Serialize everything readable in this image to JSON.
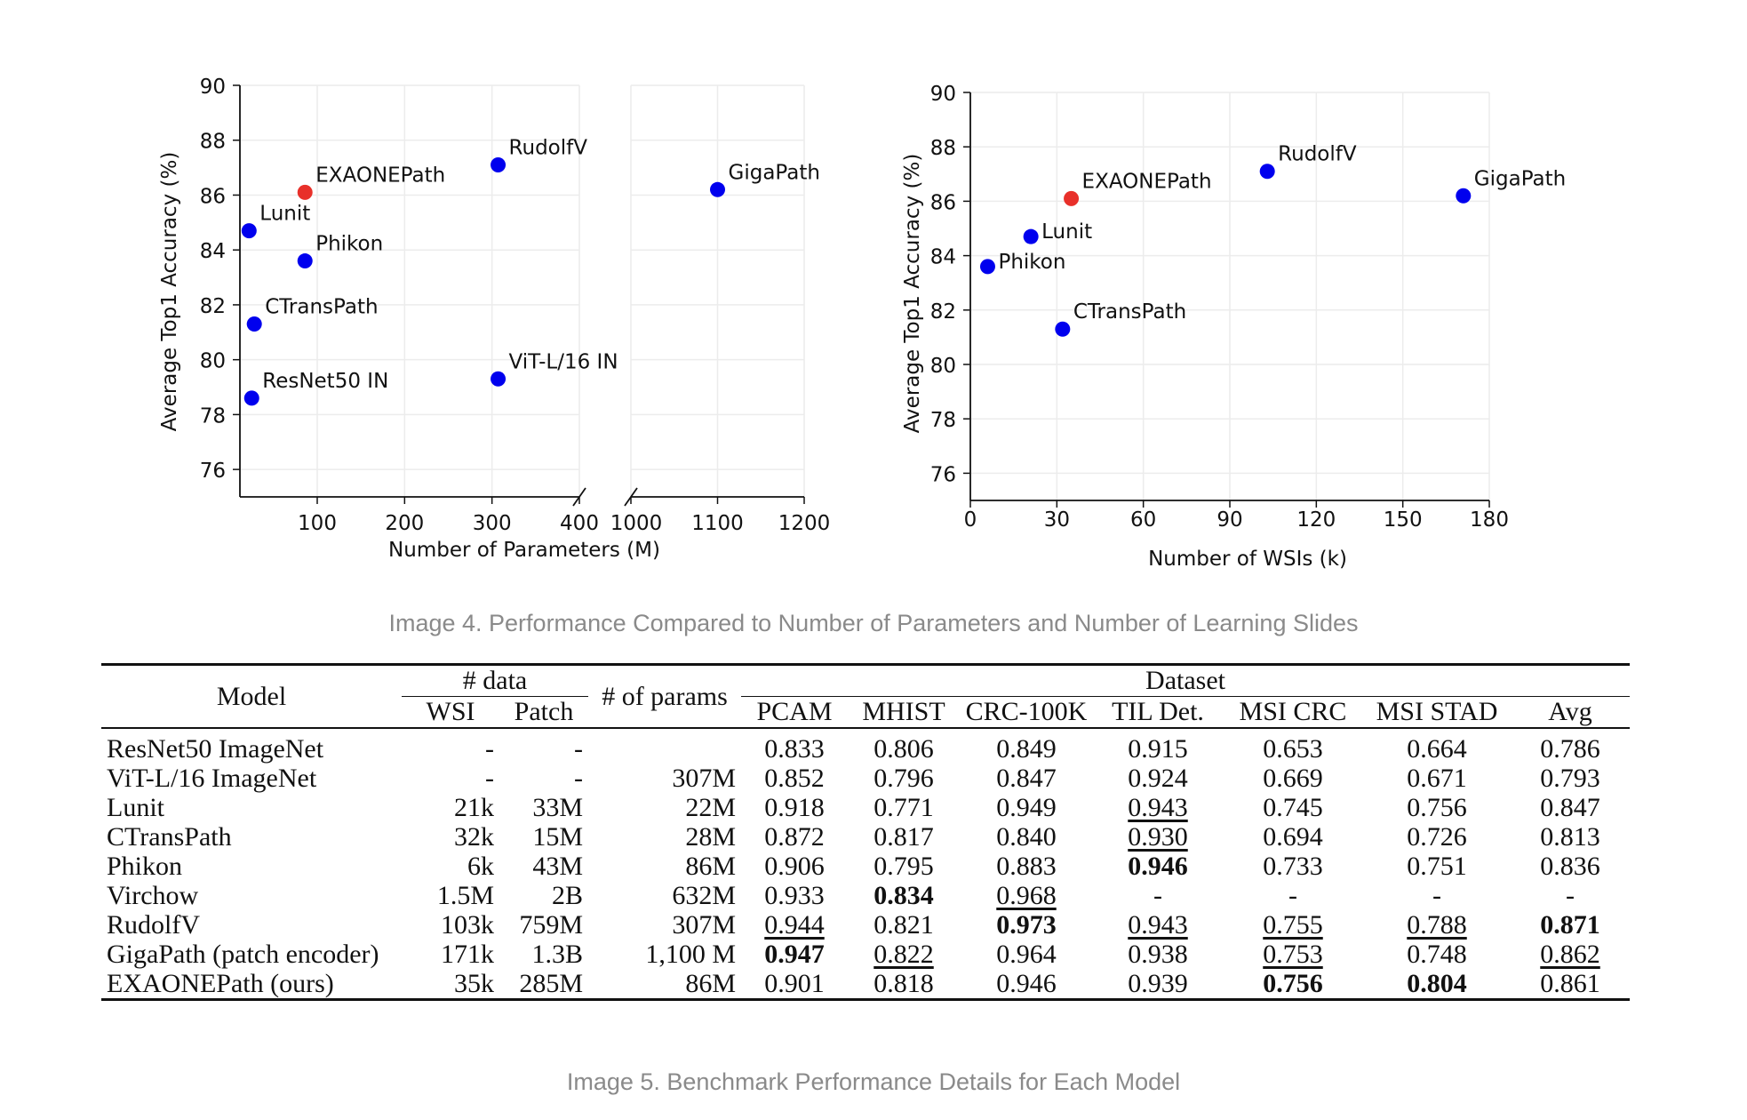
{
  "chart_data": [
    {
      "type": "scatter",
      "xlabel": "Number of Parameters (M)",
      "ylabel": "Average Top1 Accuracy (%)",
      "ylim": [
        75,
        90
      ],
      "yticks": [
        76,
        78,
        80,
        82,
        84,
        86,
        88,
        90
      ],
      "broken_x_axis": true,
      "x_segments": [
        {
          "range": [
            0,
            400
          ],
          "ticks": [
            "100",
            "200",
            "300",
            "400"
          ]
        },
        {
          "range": [
            1000,
            1200
          ],
          "ticks": [
            "1000",
            "1100",
            "1200"
          ]
        }
      ],
      "grid": true,
      "points": [
        {
          "label": "RudolfV",
          "x": 307,
          "y": 87.1,
          "color": "#0000ee"
        },
        {
          "label": "EXAONEPath",
          "x": 86,
          "y": 86.1,
          "color": "#e8302a"
        },
        {
          "label": "Lunit",
          "x": 22,
          "y": 84.7,
          "color": "#0000ee"
        },
        {
          "label": "Phikon",
          "x": 86,
          "y": 83.6,
          "color": "#0000ee"
        },
        {
          "label": "CTransPath",
          "x": 28,
          "y": 81.3,
          "color": "#0000ee"
        },
        {
          "label": "ResNet50 IN",
          "x": 25,
          "y": 78.6,
          "color": "#0000ee"
        },
        {
          "label": "ViT-L/16 IN",
          "x": 307,
          "y": 79.3,
          "color": "#0000ee"
        },
        {
          "label": "GigaPath",
          "x": 1100,
          "y": 86.2,
          "color": "#0000ee"
        }
      ]
    },
    {
      "type": "scatter",
      "xlabel": "Number of WSIs (k)",
      "ylabel": "Average Top1 Accuracy (%)",
      "xlim": [
        0,
        180
      ],
      "xticks": [
        0,
        30,
        60,
        90,
        120,
        150,
        180
      ],
      "ylim": [
        75,
        90
      ],
      "yticks": [
        76,
        78,
        80,
        82,
        84,
        86,
        88,
        90
      ],
      "grid": true,
      "points": [
        {
          "label": "RudolfV",
          "x": 103,
          "y": 87.1,
          "color": "#0000ee"
        },
        {
          "label": "EXAONEPath",
          "x": 35,
          "y": 86.1,
          "color": "#e8302a"
        },
        {
          "label": "Lunit",
          "x": 21,
          "y": 84.7,
          "color": "#0000ee"
        },
        {
          "label": "Phikon",
          "x": 6,
          "y": 83.6,
          "color": "#0000ee"
        },
        {
          "label": "CTransPath",
          "x": 32,
          "y": 81.3,
          "color": "#0000ee"
        },
        {
          "label": "GigaPath",
          "x": 171,
          "y": 86.2,
          "color": "#0000ee"
        }
      ]
    },
    {
      "type": "table",
      "headers": {
        "model": "Model",
        "data_group": "# data",
        "wsi": "WSI",
        "patch": "Patch",
        "params": "# of params",
        "dataset_group": "Dataset",
        "columns": [
          "PCAM",
          "MHIST",
          "CRC-100K",
          "TIL Det.",
          "MSI CRC",
          "MSI STAD",
          "Avg"
        ]
      },
      "rows": [
        {
          "model": "ResNet50 ImageNet",
          "wsi": "-",
          "patch": "-",
          "params": "",
          "scores": [
            "0.833",
            "0.806",
            "0.849",
            "0.915",
            "0.653",
            "0.664",
            "0.786"
          ],
          "bold": [],
          "underline": []
        },
        {
          "model": "ViT-L/16 ImageNet",
          "wsi": "-",
          "patch": "-",
          "params": "307M",
          "scores": [
            "0.852",
            "0.796",
            "0.847",
            "0.924",
            "0.669",
            "0.671",
            "0.793"
          ],
          "bold": [],
          "underline": []
        },
        {
          "model": "Lunit",
          "wsi": "21k",
          "patch": "33M",
          "params": "22M",
          "scores": [
            "0.918",
            "0.771",
            "0.949",
            "0.943",
            "0.745",
            "0.756",
            "0.847"
          ],
          "bold": [],
          "underline": [
            3
          ]
        },
        {
          "model": "CTransPath",
          "wsi": "32k",
          "patch": "15M",
          "params": "28M",
          "scores": [
            "0.872",
            "0.817",
            "0.840",
            "0.930",
            "0.694",
            "0.726",
            "0.813"
          ],
          "bold": [],
          "underline": [
            3
          ]
        },
        {
          "model": "Phikon",
          "wsi": "6k",
          "patch": "43M",
          "params": "86M",
          "scores": [
            "0.906",
            "0.795",
            "0.883",
            "0.946",
            "0.733",
            "0.751",
            "0.836"
          ],
          "bold": [
            3
          ],
          "underline": []
        },
        {
          "model": "Virchow",
          "wsi": "1.5M",
          "patch": "2B",
          "params": "632M",
          "scores": [
            "0.933",
            "0.834",
            "0.968",
            "-",
            "-",
            "-",
            "-"
          ],
          "bold": [
            1
          ],
          "underline": [
            2
          ]
        },
        {
          "model": "RudolfV",
          "wsi": "103k",
          "patch": "759M",
          "params": "307M",
          "scores": [
            "0.944",
            "0.821",
            "0.973",
            "0.943",
            "0.755",
            "0.788",
            "0.871"
          ],
          "bold": [
            2,
            6
          ],
          "underline": [
            0,
            3,
            4,
            5
          ]
        },
        {
          "model": "GigaPath (patch encoder)",
          "wsi": "171k",
          "patch": "1.3B",
          "params": "1,100 M",
          "scores": [
            "0.947",
            "0.822",
            "0.964",
            "0.938",
            "0.753",
            "0.748",
            "0.862"
          ],
          "bold": [
            0
          ],
          "underline": [
            1,
            4,
            6
          ]
        },
        {
          "model": "EXAONEPath (ours)",
          "wsi": "35k",
          "patch": "285M",
          "params": "86M",
          "scores": [
            "0.901",
            "0.818",
            "0.946",
            "0.939",
            "0.756",
            "0.804",
            "0.861"
          ],
          "bold": [
            4,
            5
          ],
          "underline": []
        }
      ]
    }
  ],
  "captions": {
    "image4": "Image 4. Performance Compared to Number of Parameters and Number of Learning Slides",
    "image5": "Image 5. Benchmark Performance Details for Each Model"
  }
}
